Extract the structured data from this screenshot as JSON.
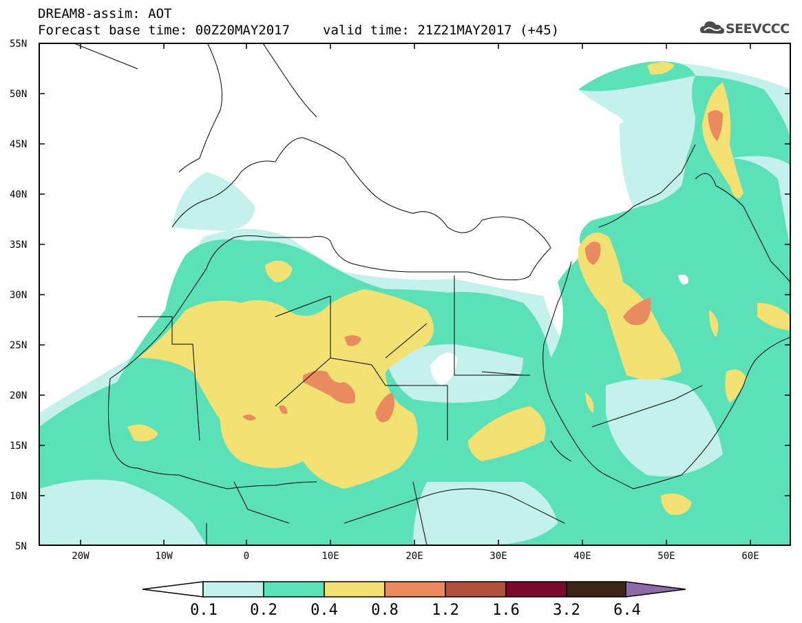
{
  "title": {
    "line1": "DREAM8-assim: AOT",
    "line2_base": "Forecast base time: 00Z20MAY2017",
    "line2_valid": "valid time: 21Z21MAY2017 (+45)"
  },
  "logo": {
    "text": "SEEVCCC",
    "icon": "cloud-logo-icon"
  },
  "axes": {
    "lat_labels": [
      "55N",
      "50N",
      "45N",
      "40N",
      "35N",
      "30N",
      "25N",
      "20N",
      "15N",
      "10N",
      "5N"
    ],
    "lon_labels": [
      "20W",
      "10W",
      "0",
      "10E",
      "20E",
      "30E",
      "40E",
      "50E",
      "60E"
    ]
  },
  "colorbar": {
    "labels": [
      "0.1",
      "0.2",
      "0.4",
      "0.8",
      "1.2",
      "1.6",
      "3.2",
      "6.4"
    ],
    "colors": [
      "#ffffff",
      "#c4f1eb",
      "#5be0b7",
      "#f4e173",
      "#e98a5f",
      "#b0513f",
      "#7a0a2c",
      "#3d2418",
      "#8e6aa8"
    ]
  },
  "map_colors": {
    "c01": "#c4f1eb",
    "c02": "#5be0b7",
    "c04": "#f4e173",
    "c08": "#e98a5f"
  }
}
